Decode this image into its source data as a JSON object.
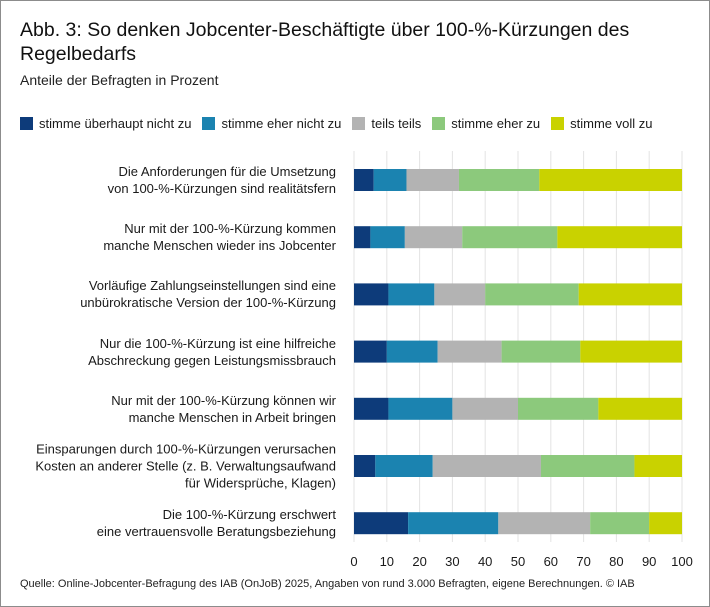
{
  "chart_data": {
    "type": "bar",
    "orientation": "horizontal",
    "stacked": true,
    "title": "Abb. 3: So denken Jobcenter-Beschäftigte über 100-%-Kürzungen des Regelbedarfs",
    "subtitle": "Anteile der Befragten in Prozent",
    "xlim": [
      0,
      100
    ],
    "xticks": [
      0,
      10,
      20,
      30,
      40,
      50,
      60,
      70,
      80,
      90,
      100
    ],
    "grid": "vertical",
    "legend_position": "top",
    "categories": [
      "Die Anforderungen für die Umsetzung von 100-%-Kürzungen sind realitätsfern",
      "Nur mit der 100-%-Kürzung kommen manche Menschen wieder ins Jobcenter",
      "Vorläufige Zahlungseinstellungen sind eine unbürokratische Version der 100-%-Kürzung",
      "Nur die 100-%-Kürzung ist eine hilfreiche Abschreckung gegen Leistungsmissbrauch",
      "Nur mit der 100-%-Kürzung können wir manche Menschen in Arbeit bringen",
      "Einsparungen durch 100-%-Kürzungen verursachen Kosten an anderer Stelle (z. B. Verwaltungsaufwand für Widersprüche, Klagen)",
      "Die 100-%-Kürzung erschwert eine vertrauensvolle Beratungsbeziehung"
    ],
    "category_lines": [
      [
        "Die Anforderungen für die Umsetzung",
        "von 100-%-Kürzungen sind realitätsfern"
      ],
      [
        "Nur mit der 100-%-Kürzung kommen",
        "manche Menschen wieder ins Jobcenter"
      ],
      [
        "Vorläufige Zahlungseinstellungen sind eine",
        "unbürokratische Version der 100-%-Kürzung"
      ],
      [
        "Nur die 100-%-Kürzung ist eine hilfreiche",
        "Abschreckung gegen Leistungsmissbrauch"
      ],
      [
        "Nur mit der 100-%-Kürzung können wir",
        "manche Menschen in Arbeit bringen"
      ],
      [
        "Einsparungen durch 100-%-Kürzungen verursachen",
        "Kosten an anderer Stelle (z. B. Verwaltungsaufwand",
        "für Widersprüche, Klagen)"
      ],
      [
        "Die 100-%-Kürzung erschwert",
        "eine vertrauensvolle Beratungsbeziehung"
      ]
    ],
    "series": [
      {
        "name": "stimme überhaupt nicht zu",
        "color": "#0d3b7a",
        "values": [
          6,
          5,
          10.5,
          10,
          10.5,
          6.5,
          16.5
        ]
      },
      {
        "name": "stimme eher nicht zu",
        "color": "#1b83b0",
        "values": [
          10,
          10.5,
          14,
          15.5,
          19.5,
          17.5,
          27.5
        ]
      },
      {
        "name": "teils teils",
        "color": "#b3b3b3",
        "values": [
          16,
          17.5,
          15.5,
          19.5,
          20,
          33,
          28
        ]
      },
      {
        "name": "stimme eher zu",
        "color": "#8cc97c",
        "values": [
          24.5,
          29,
          28.5,
          24,
          24.5,
          28.5,
          18
        ]
      },
      {
        "name": "stimme voll zu",
        "color": "#c9d200",
        "values": [
          43.5,
          38,
          31.5,
          31,
          25.5,
          14.5,
          10
        ]
      }
    ]
  },
  "source": "Quelle: Online-Jobcenter-Befragung des IAB (OnJoB) 2025, Angaben von rund 3.000 Befragten, eigene Berechnungen. © IAB"
}
